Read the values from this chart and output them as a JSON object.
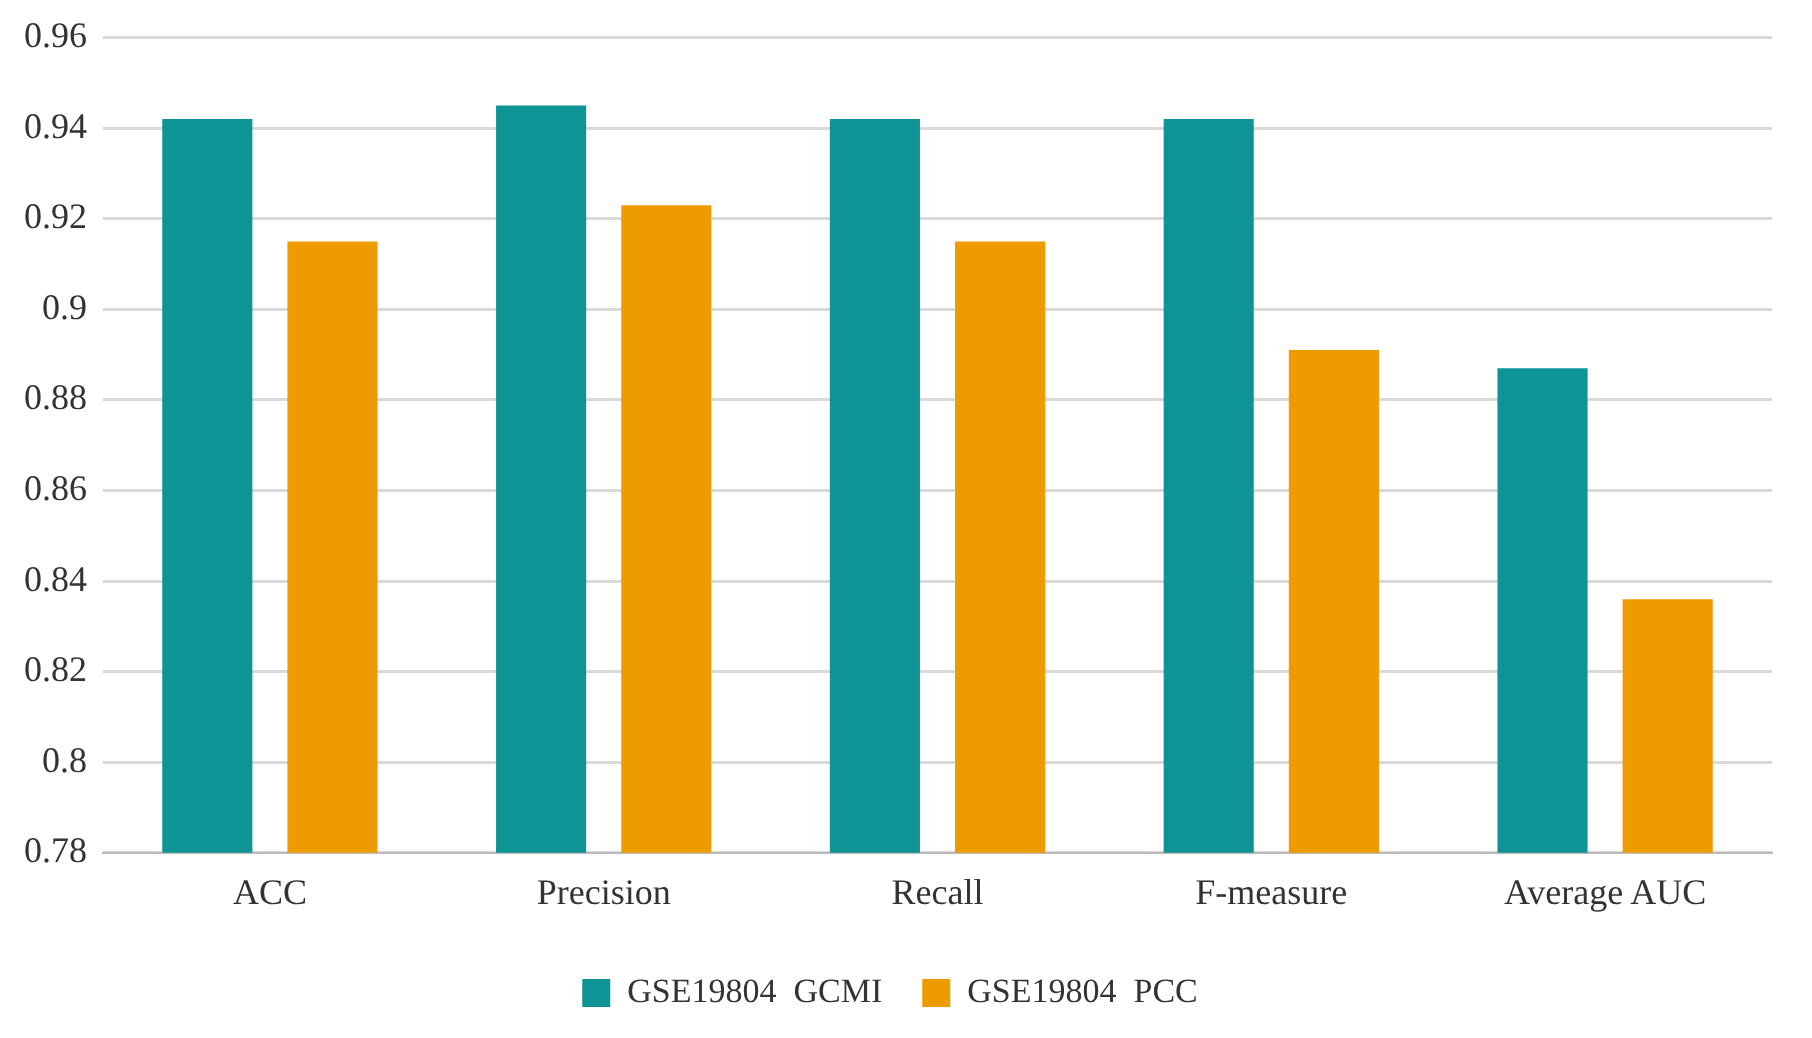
{
  "chart_data": {
    "type": "bar",
    "categories": [
      "ACC",
      "Precision",
      "Recall",
      "F-measure",
      "Average AUC"
    ],
    "series": [
      {
        "name": "GSE19804  GCMI",
        "color": "#0e9494",
        "values": [
          0.942,
          0.945,
          0.942,
          0.942,
          0.887
        ]
      },
      {
        "name": "GSE19804  PCC",
        "color": "#ee9b00",
        "values": [
          0.915,
          0.923,
          0.915,
          0.891,
          0.836
        ]
      }
    ],
    "ylim": [
      0.78,
      0.96
    ],
    "yticks": [
      0.78,
      0.8,
      0.82,
      0.84,
      0.86,
      0.88,
      0.9,
      0.92,
      0.94,
      0.96
    ],
    "grid": "y",
    "legend": "bottom"
  }
}
